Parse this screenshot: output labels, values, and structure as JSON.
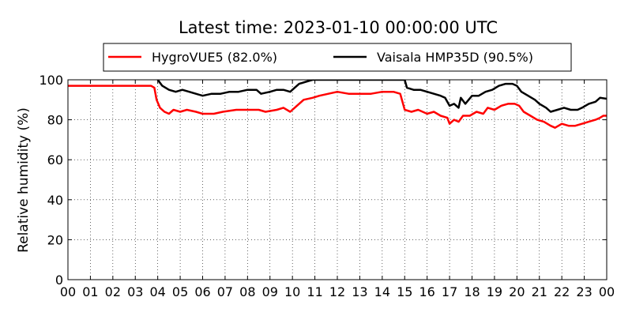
{
  "chart_data": {
    "type": "line",
    "title": "Latest time: 2023-01-10 00:00:00 UTC",
    "xlabel": "",
    "ylabel": "Relative humidity (%)",
    "xlim": [
      0,
      24
    ],
    "ylim": [
      0,
      100
    ],
    "x_ticks": [
      "00",
      "01",
      "02",
      "03",
      "04",
      "05",
      "06",
      "07",
      "08",
      "09",
      "10",
      "11",
      "12",
      "13",
      "14",
      "15",
      "16",
      "17",
      "18",
      "19",
      "20",
      "21",
      "22",
      "23",
      "00"
    ],
    "y_ticks": [
      0,
      20,
      40,
      60,
      80,
      100
    ],
    "grid": true,
    "legend_position": "top",
    "series": [
      {
        "name": "HygroVUE5 (82.0%)",
        "color": "#ff0000",
        "points": [
          [
            0,
            97
          ],
          [
            3.7,
            97
          ],
          [
            3.85,
            96
          ],
          [
            3.95,
            90
          ],
          [
            4.1,
            86
          ],
          [
            4.3,
            84
          ],
          [
            4.5,
            83
          ],
          [
            4.7,
            85
          ],
          [
            5.0,
            84
          ],
          [
            5.3,
            85
          ],
          [
            5.7,
            84
          ],
          [
            6.0,
            83
          ],
          [
            6.5,
            83
          ],
          [
            6.9,
            84
          ],
          [
            7.5,
            85
          ],
          [
            8.0,
            85
          ],
          [
            8.5,
            85
          ],
          [
            8.8,
            84
          ],
          [
            9.3,
            85
          ],
          [
            9.6,
            86
          ],
          [
            9.9,
            84
          ],
          [
            10.2,
            87
          ],
          [
            10.5,
            90
          ],
          [
            10.9,
            91
          ],
          [
            11.2,
            92
          ],
          [
            11.6,
            93
          ],
          [
            12.0,
            94
          ],
          [
            12.5,
            93
          ],
          [
            13.0,
            93
          ],
          [
            13.5,
            93
          ],
          [
            14.0,
            94
          ],
          [
            14.5,
            94
          ],
          [
            14.8,
            93
          ],
          [
            15.0,
            85
          ],
          [
            15.3,
            84
          ],
          [
            15.6,
            85
          ],
          [
            16.0,
            83
          ],
          [
            16.3,
            84
          ],
          [
            16.6,
            82
          ],
          [
            16.9,
            81
          ],
          [
            17.0,
            78
          ],
          [
            17.2,
            80
          ],
          [
            17.4,
            79
          ],
          [
            17.6,
            82
          ],
          [
            17.9,
            82
          ],
          [
            18.2,
            84
          ],
          [
            18.5,
            83
          ],
          [
            18.7,
            86
          ],
          [
            19.0,
            85
          ],
          [
            19.3,
            87
          ],
          [
            19.6,
            88
          ],
          [
            19.9,
            88
          ],
          [
            20.1,
            87
          ],
          [
            20.3,
            84
          ],
          [
            20.6,
            82
          ],
          [
            20.9,
            80
          ],
          [
            21.2,
            79
          ],
          [
            21.5,
            77
          ],
          [
            21.7,
            76
          ],
          [
            22.0,
            78
          ],
          [
            22.3,
            77
          ],
          [
            22.6,
            77
          ],
          [
            22.9,
            78
          ],
          [
            23.2,
            79
          ],
          [
            23.5,
            80
          ],
          [
            23.7,
            81
          ],
          [
            23.85,
            82
          ],
          [
            24.0,
            82
          ]
        ]
      },
      {
        "name": "Vaisala HMP35D (90.5%)",
        "color": "#000000",
        "points": [
          [
            4.0,
            100
          ],
          [
            4.2,
            97
          ],
          [
            4.5,
            95
          ],
          [
            4.8,
            94
          ],
          [
            5.1,
            95
          ],
          [
            5.4,
            94
          ],
          [
            5.7,
            93
          ],
          [
            6.0,
            92
          ],
          [
            6.4,
            93
          ],
          [
            6.8,
            93
          ],
          [
            7.2,
            94
          ],
          [
            7.6,
            94
          ],
          [
            8.0,
            95
          ],
          [
            8.4,
            95
          ],
          [
            8.6,
            93
          ],
          [
            9.0,
            94
          ],
          [
            9.3,
            95
          ],
          [
            9.6,
            95
          ],
          [
            9.9,
            94
          ],
          [
            10.1,
            96
          ],
          [
            10.3,
            98
          ],
          [
            10.6,
            99
          ],
          [
            10.9,
            100
          ],
          [
            15.0,
            100
          ],
          [
            15.1,
            96
          ],
          [
            15.4,
            95
          ],
          [
            15.7,
            95
          ],
          [
            16.0,
            94
          ],
          [
            16.3,
            93
          ],
          [
            16.6,
            92
          ],
          [
            16.8,
            91
          ],
          [
            17.0,
            87
          ],
          [
            17.2,
            88
          ],
          [
            17.4,
            86
          ],
          [
            17.5,
            91
          ],
          [
            17.7,
            88
          ],
          [
            18.0,
            92
          ],
          [
            18.3,
            92
          ],
          [
            18.6,
            94
          ],
          [
            18.9,
            95
          ],
          [
            19.2,
            97
          ],
          [
            19.5,
            98
          ],
          [
            19.8,
            98
          ],
          [
            20.0,
            97
          ],
          [
            20.2,
            94
          ],
          [
            20.5,
            92
          ],
          [
            20.8,
            90
          ],
          [
            21.0,
            88
          ],
          [
            21.3,
            86
          ],
          [
            21.5,
            84
          ],
          [
            21.8,
            85
          ],
          [
            22.1,
            86
          ],
          [
            22.4,
            85
          ],
          [
            22.7,
            85
          ],
          [
            22.9,
            86
          ],
          [
            23.2,
            88
          ],
          [
            23.5,
            89
          ],
          [
            23.7,
            91
          ],
          [
            24.0,
            90.5
          ]
        ]
      }
    ]
  }
}
